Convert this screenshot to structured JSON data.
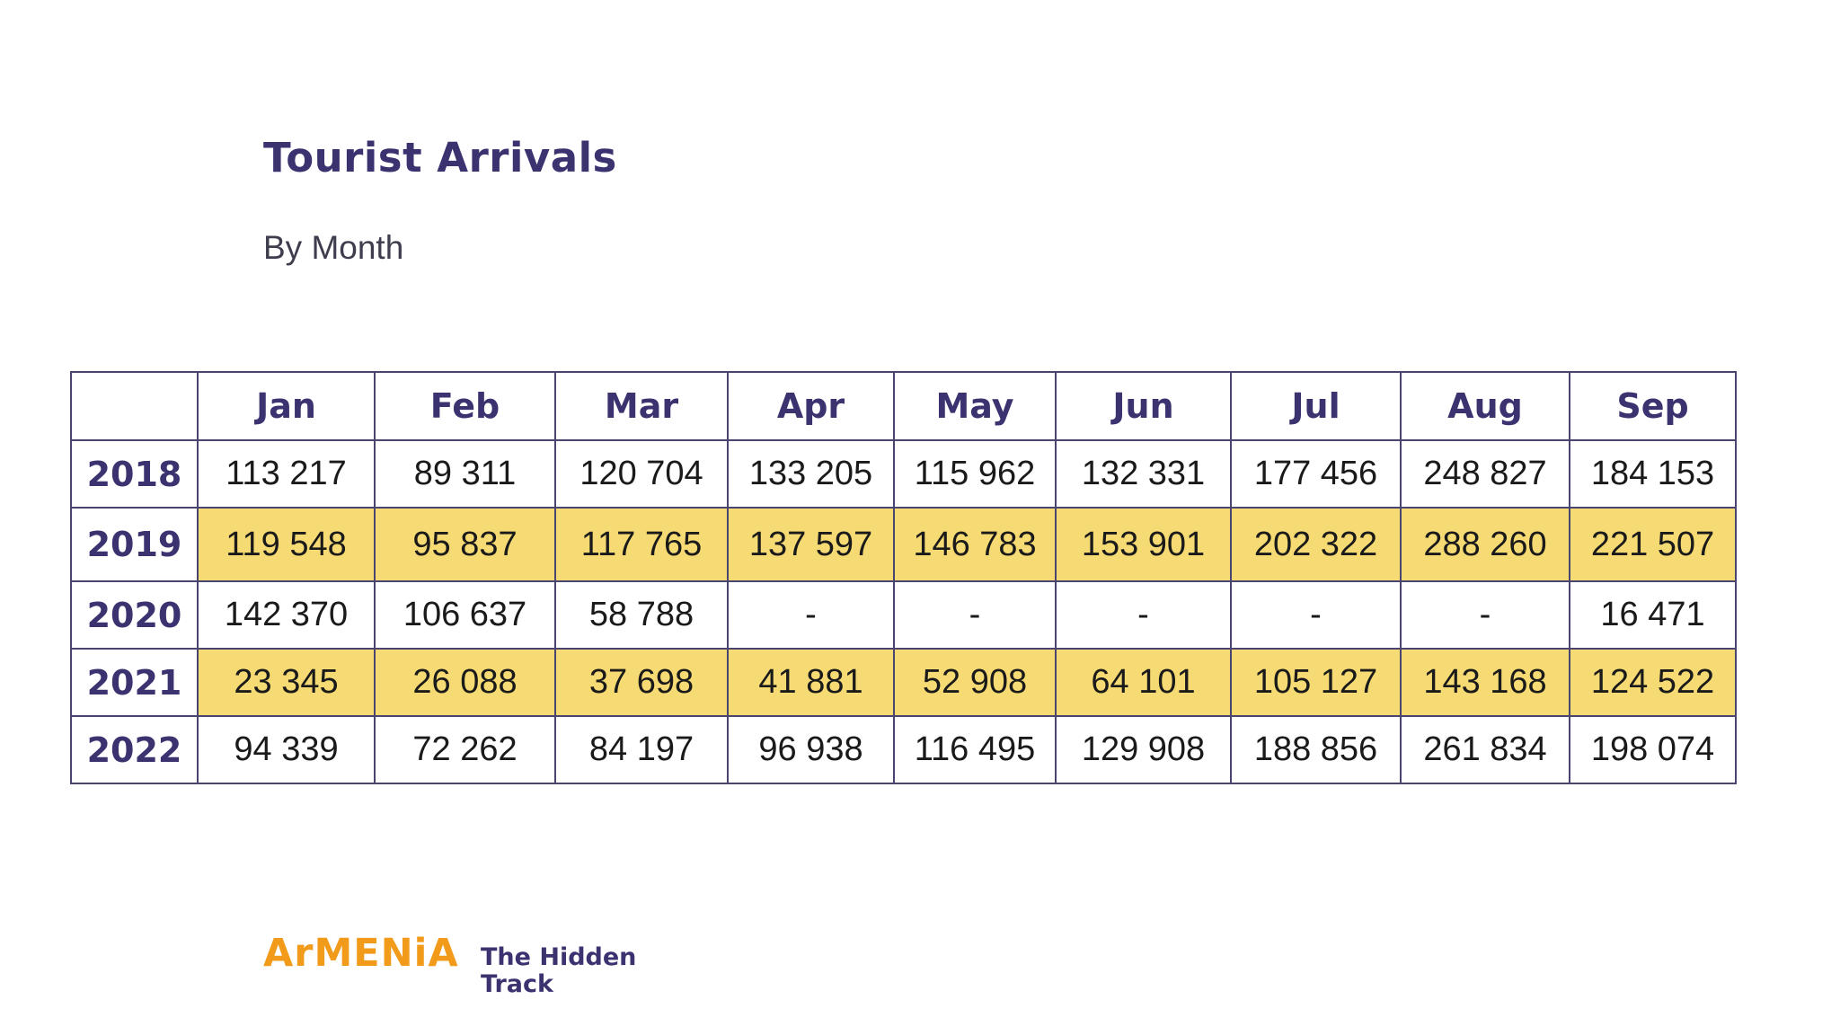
{
  "title": "Tourist Arrivals",
  "subtitle": "By Month",
  "table": {
    "corner": "",
    "columns": [
      "Jan",
      "Feb",
      "Mar",
      "Apr",
      "May",
      "Jun",
      "Jul",
      "Aug",
      "Sep"
    ],
    "rows": [
      {
        "year": "2018",
        "highlight": false,
        "values": [
          "113 217",
          "89 311",
          "120 704",
          "133 205",
          "115 962",
          "132 331",
          "177 456",
          "248 827",
          "184 153"
        ]
      },
      {
        "year": "2019",
        "highlight": true,
        "values": [
          "119 548",
          "95 837",
          "117 765",
          "137 597",
          "146 783",
          "153 901",
          "202 322",
          "288 260",
          "221 507"
        ]
      },
      {
        "year": "2020",
        "highlight": false,
        "values": [
          "142 370",
          "106 637",
          "58 788",
          "-",
          "-",
          "-",
          "-",
          "-",
          "16 471"
        ]
      },
      {
        "year": "2021",
        "highlight": true,
        "values": [
          "23 345",
          "26 088",
          "37 698",
          "41 881",
          "52 908",
          "64 101",
          "105 127",
          "143 168",
          "124 522"
        ]
      },
      {
        "year": "2022",
        "highlight": false,
        "values": [
          "94 339",
          "72 262",
          "84 197",
          "96 938",
          "116 495",
          "129 908",
          "188 856",
          "261 834",
          "198 074"
        ]
      }
    ]
  },
  "logo": {
    "wordmark": "ArMENiA",
    "tagline": "The Hidden Track"
  },
  "colors": {
    "heading": "#3b3270",
    "highlight_row": "#f6da73",
    "border": "#4a4470",
    "logo_orange": "#f29b1b"
  }
}
